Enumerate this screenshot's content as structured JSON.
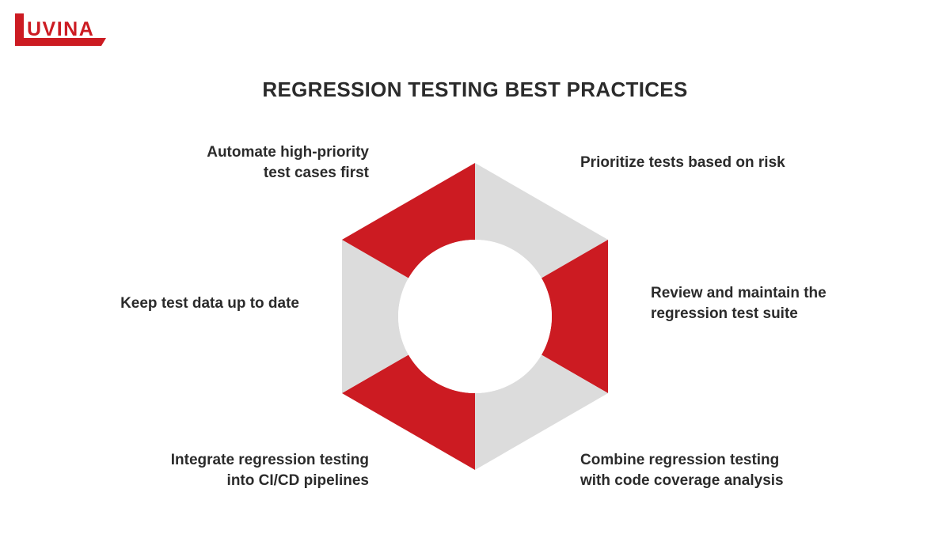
{
  "brand": {
    "logo_text": "UVINA",
    "logo_letter": "L",
    "color": "#cc1b22"
  },
  "title": "REGRESSION TESTING BEST PRACTICES",
  "colors": {
    "red": "#cc1b22",
    "gray": "#dcdcdc",
    "text": "#2b2b2b"
  },
  "practices": [
    {
      "lines": [
        "Prioritize tests based on risk"
      ],
      "color": "gray"
    },
    {
      "lines": [
        "Review and maintain the",
        "regression test suite"
      ],
      "color": "red"
    },
    {
      "lines": [
        "Combine regression testing",
        "with code coverage analysis"
      ],
      "color": "gray"
    },
    {
      "lines": [
        "Integrate regression testing",
        "into CI/CD pipelines"
      ],
      "color": "red"
    },
    {
      "lines": [
        "Keep test data up to date"
      ],
      "color": "gray"
    },
    {
      "lines": [
        "Automate high-priority",
        "test cases first"
      ],
      "color": "red"
    }
  ]
}
